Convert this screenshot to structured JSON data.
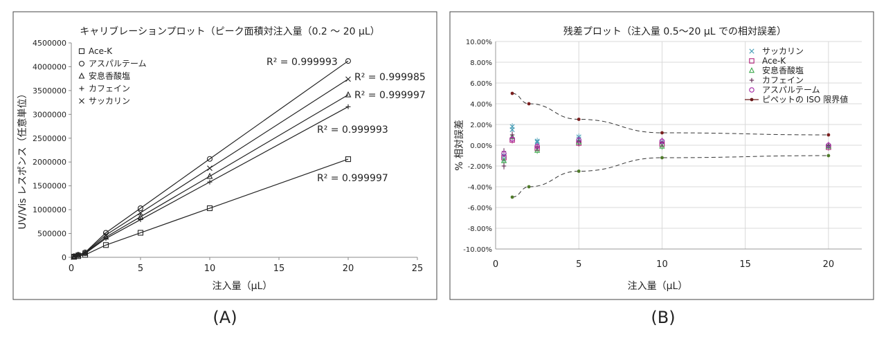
{
  "panels": [
    "(A)",
    "(B)"
  ],
  "chart_data": [
    {
      "type": "line",
      "title": "キャリブレーションプロット（ピーク面積対注入量（0.2 ～ 20 µL）",
      "xlabel": "注入量（µL）",
      "ylabel": "UV/Vis レスポンス（任意単位）",
      "xlim": [
        0,
        25
      ],
      "ylim": [
        0,
        4500000
      ],
      "x_ticks": [
        0,
        5,
        10,
        15,
        20,
        25
      ],
      "y_ticks": [
        0,
        500000,
        1000000,
        1500000,
        2000000,
        2500000,
        3000000,
        3500000,
        4000000,
        4500000
      ],
      "grid": false,
      "legend_position": "top-left",
      "x": [
        0.2,
        0.5,
        1,
        2.5,
        5,
        10,
        20
      ],
      "series": [
        {
          "name": "Ace-K",
          "marker": "square",
          "values": [
            10300,
            25800,
            51500,
            257500,
            515000,
            1030000,
            2060000
          ],
          "r2_label": "R² = 0.999997"
        },
        {
          "name": "アスパルテーム",
          "marker": "circle",
          "values": [
            20600,
            51500,
            103000,
            515000,
            1030000,
            2065000,
            4120000
          ],
          "r2_label": "R² = 0.999993"
        },
        {
          "name": "安息香酸塩",
          "marker": "triangle",
          "values": [
            17000,
            42600,
            85000,
            425000,
            850000,
            1700000,
            3410000
          ],
          "r2_label": "R² = 0.999997"
        },
        {
          "name": "カフェイン",
          "marker": "plus",
          "values": [
            15800,
            39500,
            79000,
            395000,
            790000,
            1580000,
            3160000
          ],
          "r2_label": "R² = 0.999993"
        },
        {
          "name": "サッカリン",
          "marker": "x",
          "values": [
            18700,
            46800,
            93500,
            467500,
            935000,
            1870000,
            3740000
          ],
          "r2_label": "R² = 0.999985"
        }
      ]
    },
    {
      "type": "scatter",
      "title": "残差プロット（注入量 0.5～20 µL での相対誤差）",
      "xlabel": "注入量（µL）",
      "ylabel": "% 相対誤差",
      "xlim": [
        0,
        22
      ],
      "ylim": [
        -10,
        10
      ],
      "x_ticks": [
        0,
        5,
        10,
        15,
        20
      ],
      "y_ticks": [
        "10.00%",
        "8.00%",
        "6.00%",
        "4.00%",
        "2.00%",
        "0.00%",
        "-2.00%",
        "-4.00%",
        "-6.00%",
        "-8.00%",
        "-10.00%"
      ],
      "grid": true,
      "legend_position": "top-right",
      "series": [
        {
          "name": "サッカリン",
          "marker": "x",
          "color": "#4a9fb8",
          "points": [
            [
              0.5,
              -1.0
            ],
            [
              0.5,
              -1.4
            ],
            [
              1,
              1.5
            ],
            [
              1,
              1.8
            ],
            [
              2.5,
              0.3
            ],
            [
              2.5,
              0.4
            ],
            [
              5,
              0.8
            ],
            [
              5,
              0.6
            ],
            [
              10,
              0.3
            ],
            [
              20,
              -0.1
            ]
          ]
        },
        {
          "name": "Ace-K",
          "marker": "square",
          "color": "#b0207a",
          "points": [
            [
              0.5,
              -1.2
            ],
            [
              1,
              0.5
            ],
            [
              2.5,
              -0.3
            ],
            [
              5,
              0.2
            ],
            [
              10,
              0.1
            ],
            [
              20,
              -0.2
            ]
          ]
        },
        {
          "name": "安息香酸塩",
          "marker": "triangle",
          "color": "#3aa84a",
          "points": [
            [
              0.5,
              -1.5
            ],
            [
              1,
              0.8
            ],
            [
              2.5,
              -0.5
            ],
            [
              5,
              0.3
            ],
            [
              10,
              -0.1
            ],
            [
              20,
              -0.1
            ]
          ]
        },
        {
          "name": "カフェイン",
          "marker": "plus",
          "color": "#5a1f4a",
          "points": [
            [
              0.5,
              -2.0
            ],
            [
              0.5,
              -0.6
            ],
            [
              1,
              1.0
            ],
            [
              2.5,
              -0.2
            ],
            [
              5,
              0.3
            ],
            [
              10,
              0.2
            ],
            [
              20,
              0.0
            ]
          ]
        },
        {
          "name": "アスパルテーム",
          "marker": "circle",
          "color": "#a020a0",
          "points": [
            [
              0.5,
              -0.8
            ],
            [
              1,
              0.6
            ],
            [
              2.5,
              -0.1
            ],
            [
              5,
              0.5
            ],
            [
              10,
              0.4
            ],
            [
              20,
              0.0
            ]
          ]
        },
        {
          "name": "ピペットの ISO 限界値",
          "marker": "dot-line",
          "color": "#6b1a1a",
          "points_upper": [
            [
              1,
              5.0
            ],
            [
              2,
              4.0
            ],
            [
              5,
              2.5
            ],
            [
              10,
              1.2
            ],
            [
              20,
              1.0
            ]
          ],
          "points_lower": [
            [
              1,
              -5.0
            ],
            [
              2,
              -4.0
            ],
            [
              5,
              -2.5
            ],
            [
              10,
              -1.2
            ],
            [
              20,
              -1.0
            ]
          ]
        }
      ]
    }
  ]
}
